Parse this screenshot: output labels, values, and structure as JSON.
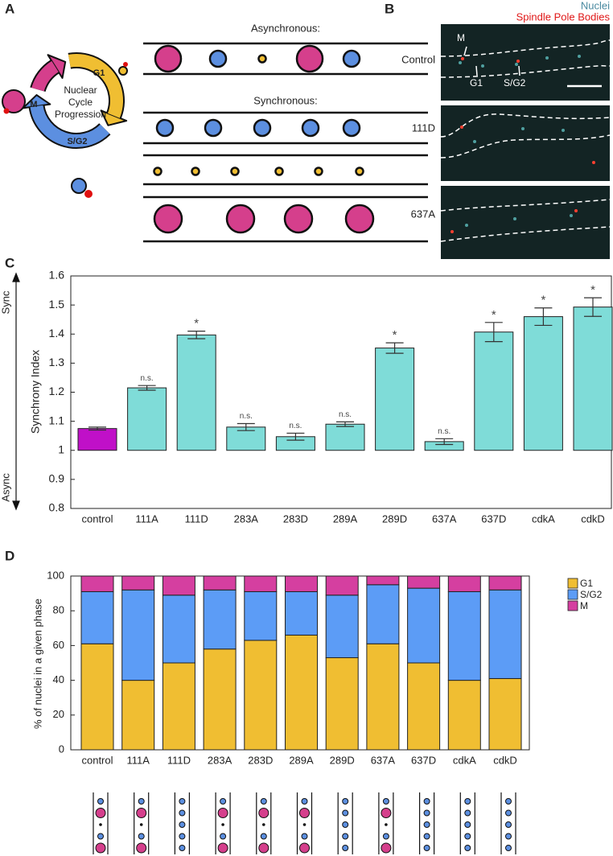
{
  "panels": {
    "a": "A",
    "b": "B",
    "c": "C",
    "d": "D"
  },
  "diagram": {
    "cycle_label": [
      "Nuclear",
      "Cycle",
      "Progression"
    ],
    "phases": {
      "g1": "G1",
      "m": "M",
      "sg2": "S/G2"
    },
    "asynchronous": "Asynchronous:",
    "synchronous": "Synchronous:"
  },
  "micrographs": {
    "legend": [
      "Nuclei",
      "Spindle Pole Bodies"
    ],
    "rows": [
      "Control",
      "111D",
      "637A"
    ],
    "markers": [
      "M",
      "G1",
      "S/G2"
    ]
  },
  "chart_data": [
    {
      "type": "bar",
      "ylabel": "Synchrony Index",
      "direction_labels": [
        "Sync",
        "Async"
      ],
      "categories": [
        "control",
        "111A",
        "111D",
        "283A",
        "283D",
        "289A",
        "289D",
        "637A",
        "637D",
        "cdkA",
        "cdkD"
      ],
      "values": [
        1.075,
        1.215,
        1.397,
        1.08,
        1.047,
        1.09,
        1.352,
        1.03,
        1.407,
        1.46,
        1.493
      ],
      "errors": [
        0.005,
        0.008,
        0.013,
        0.012,
        0.012,
        0.008,
        0.018,
        0.01,
        0.033,
        0.03,
        0.032
      ],
      "annotations": [
        null,
        "n.s.",
        "*",
        "n.s.",
        "n.s.",
        "n.s.",
        "*",
        "n.s.",
        "*",
        "*",
        "*"
      ],
      "colors": [
        "#c010c8",
        "#7fdcd8",
        "#7fdcd8",
        "#7fdcd8",
        "#7fdcd8",
        "#7fdcd8",
        "#7fdcd8",
        "#7fdcd8",
        "#7fdcd8",
        "#7fdcd8",
        "#7fdcd8"
      ],
      "baseline": 1,
      "ylim": [
        0.8,
        1.6
      ],
      "yticks": [
        0.8,
        0.9,
        1,
        1.1,
        1.2,
        1.3,
        1.4,
        1.5,
        1.6
      ]
    },
    {
      "type": "stacked_bar",
      "ylabel": "% of nuclei in a given phase",
      "categories": [
        "control",
        "111A",
        "111D",
        "283A",
        "283D",
        "289A",
        "289D",
        "637A",
        "637D",
        "cdkA",
        "cdkD"
      ],
      "series": [
        {
          "name": "G1",
          "color": "#f0be32",
          "values": [
            61,
            40,
            50,
            58,
            63,
            66,
            53,
            61,
            50,
            40,
            41
          ]
        },
        {
          "name": "S/G2",
          "color": "#5c9cf6",
          "values": [
            30,
            52,
            39,
            34,
            28,
            25,
            36,
            34,
            43,
            51,
            51
          ]
        },
        {
          "name": "M",
          "color": "#d53fa0",
          "values": [
            9,
            8,
            11,
            8,
            9,
            9,
            11,
            5,
            7,
            9,
            8
          ]
        }
      ],
      "ylim": [
        0,
        100
      ],
      "yticks": [
        0,
        20,
        40,
        60,
        80,
        100
      ],
      "legend": "right"
    }
  ]
}
